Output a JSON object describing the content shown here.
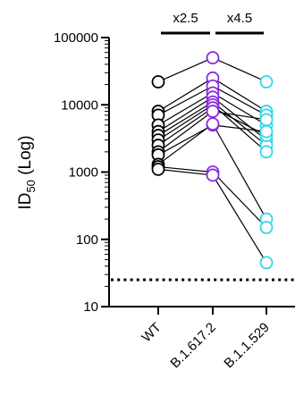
{
  "chart_data": {
    "type": "scatter",
    "categories": [
      "WT",
      "B.1.617.2",
      "B.1.1.529"
    ],
    "yscale": "log",
    "ylim": [
      10,
      100000
    ],
    "yticks": [
      10,
      100,
      1000,
      10000,
      100000
    ],
    "ytick_labels": [
      "10",
      "100",
      "1000",
      "10000",
      "100000"
    ],
    "ylabel": {
      "main": "ID",
      "sub": "50",
      "suffix": " (Log)"
    },
    "detection_limit": 25,
    "fold_changes": [
      {
        "label": "x2.5",
        "from": "WT",
        "to": "B.1.617.2"
      },
      {
        "label": "x4.5",
        "from": "B.1.617.2",
        "to": "B.1.1.529"
      }
    ],
    "colors": {
      "WT": "#000000",
      "B.1.617.2": "#8a2be2",
      "B.1.1.529": "#33d6e6"
    },
    "subjects": [
      {
        "values": [
          22000,
          50000,
          22000
        ]
      },
      {
        "values": [
          8000,
          25000,
          8000
        ]
      },
      {
        "values": [
          7000,
          19000,
          7000
        ]
      },
      {
        "values": [
          5000,
          15000,
          5000
        ]
      },
      {
        "values": [
          4000,
          13000,
          3000
        ]
      },
      {
        "values": [
          3500,
          11000,
          2500
        ]
      },
      {
        "values": [
          3000,
          10000,
          2000
        ]
      },
      {
        "values": [
          2500,
          9000,
          3500
        ]
      },
      {
        "values": [
          2000,
          8000,
          6000
        ]
      },
      {
        "values": [
          1800,
          5000,
          4000
        ]
      },
      {
        "values": [
          1300,
          5200,
          200
        ]
      },
      {
        "values": [
          1200,
          1000,
          150
        ]
      },
      {
        "values": [
          1100,
          900,
          45
        ]
      }
    ]
  }
}
